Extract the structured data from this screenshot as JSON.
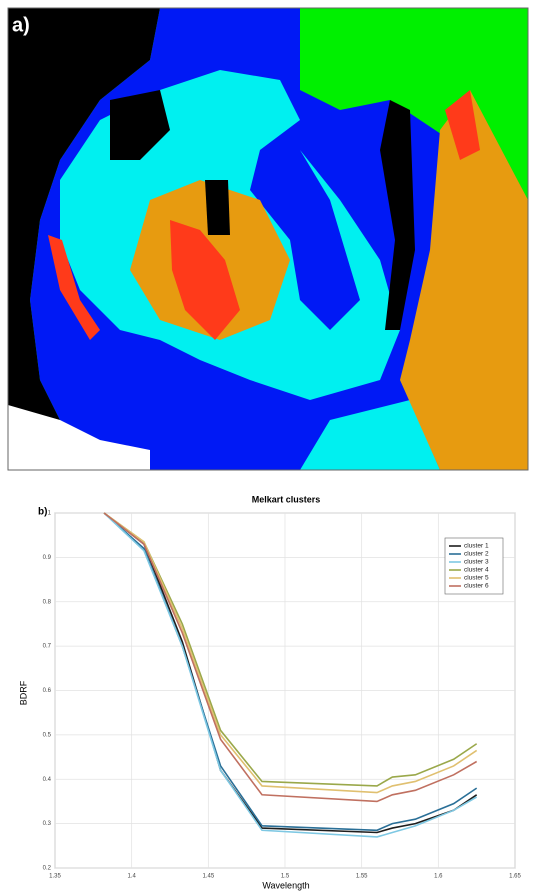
{
  "panel_a": {
    "label": "a)"
  },
  "chart_data": {
    "type": "line",
    "panel_label": "b)",
    "title": "Melkart clusters",
    "x_label": "Wavelength",
    "y_label": "BDRF",
    "x": [
      1.382,
      1.408,
      1.433,
      1.458,
      1.485,
      1.56,
      1.57,
      1.585,
      1.61,
      1.625
    ],
    "series": [
      {
        "name": "cluster 1",
        "color": "#1e1e1e",
        "values": [
          1,
          0.93,
          0.71,
          0.42,
          0.29,
          0.28,
          0.29,
          0.3,
          0.33,
          0.365
        ]
      },
      {
        "name": "cluster 2",
        "color": "#2a6f97",
        "values": [
          1,
          0.92,
          0.7,
          0.43,
          0.295,
          0.285,
          0.3,
          0.31,
          0.345,
          0.38
        ]
      },
      {
        "name": "cluster 3",
        "color": "#7ec8e3",
        "values": [
          1,
          0.915,
          0.7,
          0.42,
          0.285,
          0.27,
          0.28,
          0.295,
          0.33,
          0.36
        ]
      },
      {
        "name": "cluster 4",
        "color": "#9aa84a",
        "values": [
          1,
          0.935,
          0.75,
          0.51,
          0.395,
          0.385,
          0.405,
          0.41,
          0.445,
          0.48
        ]
      },
      {
        "name": "cluster 5",
        "color": "#e0c070",
        "values": [
          1,
          0.935,
          0.74,
          0.5,
          0.385,
          0.37,
          0.385,
          0.395,
          0.43,
          0.465
        ]
      },
      {
        "name": "cluster 6",
        "color": "#c07060",
        "values": [
          1,
          0.93,
          0.73,
          0.49,
          0.365,
          0.35,
          0.365,
          0.375,
          0.41,
          0.44
        ]
      }
    ],
    "xlim": [
      1.35,
      1.65
    ],
    "xticks": [
      1.35,
      1.4,
      1.45,
      1.5,
      1.55,
      1.6,
      1.65
    ],
    "ylim": [
      0.2,
      1
    ],
    "yticks": [
      0.2,
      0.3,
      0.4,
      0.5,
      0.6,
      0.7,
      0.8,
      0.9,
      1
    ],
    "grid": true,
    "legend": "upper right"
  }
}
